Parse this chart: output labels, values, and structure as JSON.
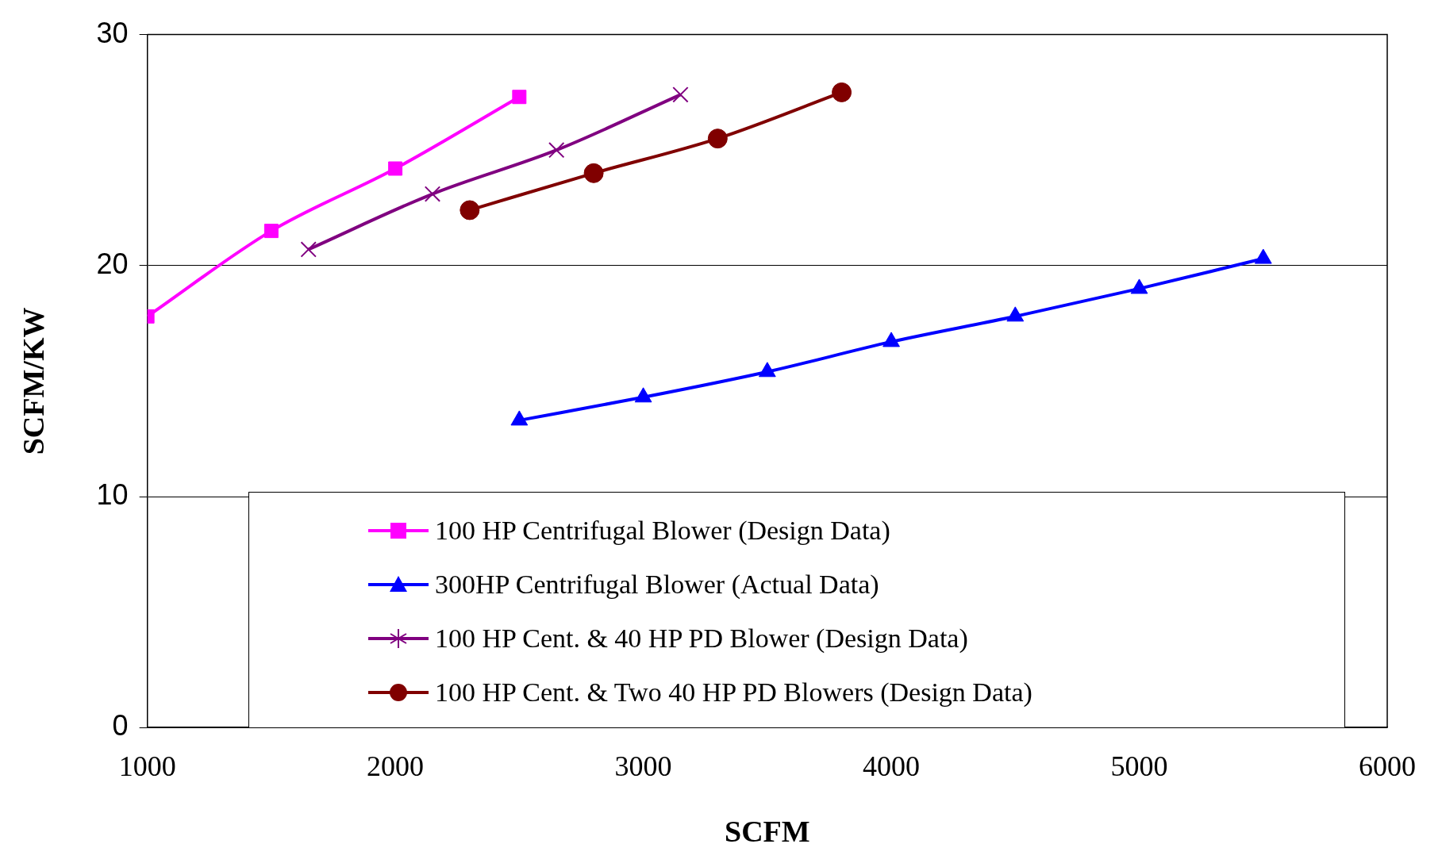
{
  "chart_data": {
    "type": "line",
    "xlabel": "SCFM",
    "ylabel": "SCFM/KW",
    "xlim": [
      1000,
      6000
    ],
    "xticks": [
      1000,
      2000,
      3000,
      4000,
      5000,
      6000
    ],
    "ylim": [
      0,
      30
    ],
    "yticks": [
      0,
      10,
      20,
      30
    ],
    "grid": "y",
    "legend": "bottom",
    "line_style": "solid",
    "series": [
      {
        "name": "100 HP Centrifugal Blower (Design Data)",
        "color": "#ff00ff",
        "marker": "square",
        "x": [
          1000,
          1500,
          2000,
          2500
        ],
        "values": [
          17.8,
          21.5,
          24.2,
          27.3
        ]
      },
      {
        "name": "300HP Centrifugal Blower (Actual Data)",
        "color": "#0000ff",
        "marker": "triangle",
        "x": [
          2500,
          3000,
          3500,
          4000,
          4500,
          5000,
          5500
        ],
        "values": [
          13.3,
          14.3,
          15.4,
          16.7,
          17.8,
          19.0,
          20.3
        ]
      },
      {
        "name": "100 HP Cent. & 40 HP PD Blower (Design Data)",
        "color": "#800080",
        "marker": "cross",
        "x": [
          1650,
          2150,
          2650,
          3150
        ],
        "values": [
          20.7,
          23.1,
          25.0,
          27.4
        ]
      },
      {
        "name": "100 HP Cent. & Two 40 HP PD Blowers (Design Data)",
        "color": "#800000",
        "marker": "circle",
        "x": [
          2300,
          2800,
          3300,
          3800
        ],
        "values": [
          22.4,
          24.0,
          25.5,
          27.5
        ]
      }
    ]
  }
}
